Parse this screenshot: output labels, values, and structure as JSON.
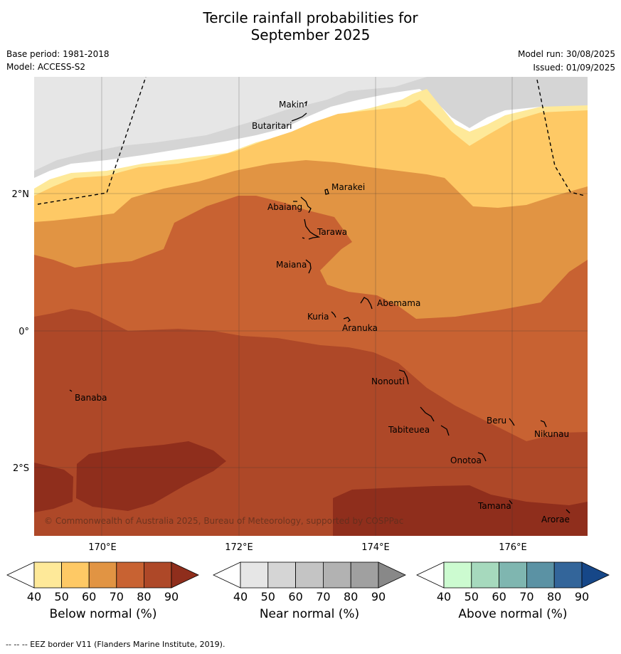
{
  "header": {
    "title_line1": "Tercile rainfall probabilities for",
    "title_line2": "September 2025",
    "base_period": "Base period: 1981-2018",
    "model": "Model: ACCESS-S2",
    "model_run": "Model run: 30/08/2025",
    "issued": "Issued: 01/09/2025"
  },
  "map": {
    "lat_labels": [
      "2°N",
      "0°",
      "2°S"
    ],
    "lon_labels": [
      "170°E",
      "172°E",
      "174°E",
      "176°E"
    ],
    "copyright": "© Commonwealth of Australia 2025, Bureau of Meteorology, supported by COSPPac",
    "places": [
      "Makin",
      "Butaritari",
      "Marakei",
      "Abaiang",
      "Tarawa",
      "Maiana",
      "Abemama",
      "Kuria",
      "Aranuka",
      "Banaba",
      "Nonouti",
      "Beru",
      "Nikunau",
      "Tabiteuea",
      "Onotoa",
      "Tamana",
      "Arorae"
    ]
  },
  "colorbars": {
    "below": {
      "label": "Below normal (%)",
      "ticks": [
        "40",
        "50",
        "60",
        "70",
        "80",
        "90"
      ],
      "colors": [
        "#ffffff",
        "#fee999",
        "#fec965",
        "#e19443",
        "#c86232",
        "#ae4828",
        "#8f2e1c"
      ]
    },
    "near": {
      "label": "Near normal (%)",
      "ticks": [
        "40",
        "50",
        "60",
        "70",
        "80",
        "90"
      ],
      "colors": [
        "#ffffff",
        "#e6e6e6",
        "#d5d5d5",
        "#c4c4c4",
        "#b2b2b2",
        "#a0a0a0",
        "#888888"
      ]
    },
    "above": {
      "label": "Above normal (%)",
      "ticks": [
        "40",
        "50",
        "60",
        "70",
        "80",
        "90"
      ],
      "colors": [
        "#ffffff",
        "#ccfbd0",
        "#a6d9bd",
        "#7fb6b0",
        "#5b92a4",
        "#33659a",
        "#164788"
      ]
    }
  },
  "footer": "--  --  -- EEZ border V11 (Flanders Marine Institute, 2019)."
}
